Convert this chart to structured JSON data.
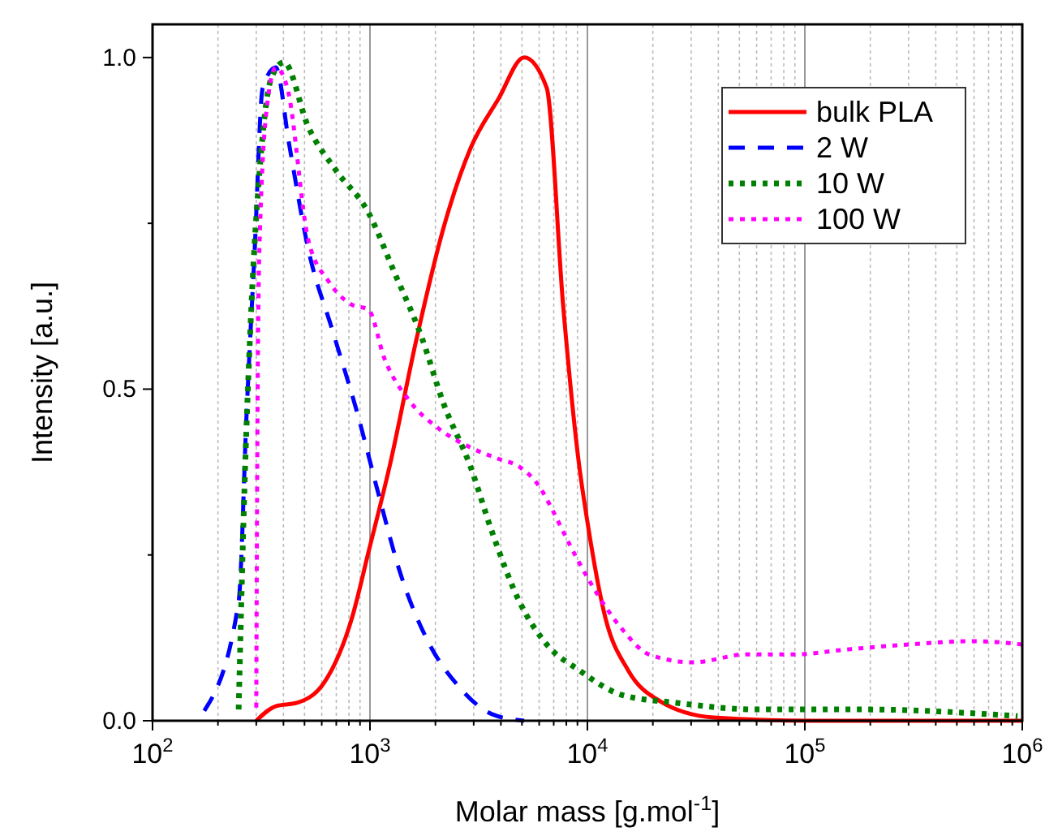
{
  "chart_data": {
    "type": "line",
    "xlabel": "Molar mass [g.mol$^{-1}$]",
    "ylabel": "Intensity [a.u.]",
    "log": "x",
    "grid": "x",
    "legend": "top right",
    "xlim": [
      100,
      1000000
    ],
    "ylim": [
      0,
      1.05
    ],
    "xticks": [
      {
        "value": 100,
        "label": "10$^{2}$"
      },
      {
        "value": 200,
        "label": null
      },
      {
        "value": 300,
        "label": null
      },
      {
        "value": 400,
        "label": null
      },
      {
        "value": 500,
        "label": null
      },
      {
        "value": 600,
        "label": null
      },
      {
        "value": 700,
        "label": null
      },
      {
        "value": 800,
        "label": null
      },
      {
        "value": 900,
        "label": null
      },
      {
        "value": 1000,
        "label": "10$^{3}$"
      },
      {
        "value": 2000,
        "label": null
      },
      {
        "value": 3000,
        "label": null
      },
      {
        "value": 4000,
        "label": null
      },
      {
        "value": 5000,
        "label": null
      },
      {
        "value": 6000,
        "label": null
      },
      {
        "value": 7000,
        "label": null
      },
      {
        "value": 8000,
        "label": null
      },
      {
        "value": 9000,
        "label": null
      },
      {
        "value": 10000,
        "label": "10$^{4}$"
      },
      {
        "value": 20000,
        "label": null
      },
      {
        "value": 30000,
        "label": null
      },
      {
        "value": 40000,
        "label": null
      },
      {
        "value": 50000,
        "label": null
      },
      {
        "value": 60000,
        "label": null
      },
      {
        "value": 70000,
        "label": null
      },
      {
        "value": 80000,
        "label": null
      },
      {
        "value": 90000,
        "label": null
      },
      {
        "value": 100000,
        "label": "10$^{5}$"
      },
      {
        "value": 200000,
        "label": null
      },
      {
        "value": 300000,
        "label": null
      },
      {
        "value": 400000,
        "label": null
      },
      {
        "value": 500000,
        "label": null
      },
      {
        "value": 600000,
        "label": null
      },
      {
        "value": 700000,
        "label": null
      },
      {
        "value": 800000,
        "label": null
      },
      {
        "value": 900000,
        "label": null
      },
      {
        "value": 1000000,
        "label": "10$^{6}$"
      }
    ],
    "yticks": [
      {
        "value": 0,
        "label": "0.0"
      },
      {
        "value": 0.25,
        "label": null
      },
      {
        "value": 0.5,
        "label": "0.5"
      },
      {
        "value": 0.75,
        "label": null
      },
      {
        "value": 1,
        "label": "1.0"
      }
    ],
    "series": [
      {
        "name": "bulk PLA",
        "color": "#ff0000",
        "line_style": "solid",
        "x": [
          300,
          369,
          461,
          617,
          828,
          984,
          1230,
          1643,
          2170,
          2900,
          3890,
          5120,
          6500,
          7730,
          9180,
          10000,
          12080,
          15400,
          21700,
          38000,
          107000,
          1000000
        ],
        "values": [
          0,
          0.022,
          0.027,
          0.058,
          0.156,
          0.254,
          0.383,
          0.578,
          0.741,
          0.863,
          0.937,
          1.0,
          0.954,
          0.627,
          0.383,
          0.3,
          0.156,
          0.076,
          0.029,
          0.005,
          0,
          0
        ]
      },
      {
        "name": "2 W",
        "color": "#0000ff",
        "line_style": "dashed",
        "x": [
          173,
          249,
          271,
          295,
          321,
          369,
          424,
          521,
          673,
          871,
          1090,
          1380,
          1820,
          2570,
          3640,
          5120
        ],
        "values": [
          0.015,
          0.18,
          0.466,
          0.71,
          0.954,
          0.985,
          0.871,
          0.71,
          0.588,
          0.466,
          0.344,
          0.222,
          0.124,
          0.051,
          0.01,
          0
        ]
      },
      {
        "name": "10 W",
        "color": "#008000",
        "line_style": "dotted",
        "x": [
          249,
          262,
          285,
          311,
          351,
          402,
          521,
          697,
          984,
          1295,
          1730,
          2170,
          2900,
          3640,
          4860,
          6500,
          9180,
          14370,
          25700,
          60300,
          189000,
          951000
        ],
        "values": [
          0.017,
          0.3,
          0.627,
          0.83,
          0.968,
          0.993,
          0.895,
          0.83,
          0.766,
          0.676,
          0.578,
          0.48,
          0.383,
          0.285,
          0.18,
          0.115,
          0.076,
          0.039,
          0.027,
          0.017,
          0.017,
          0.007
        ]
      },
      {
        "name": "100 W",
        "color": "#ff00ff",
        "line_style": "dotted",
        "x": [
          300,
          303,
          310,
          339,
          369,
          417,
          521,
          650,
          828,
          984,
          1166,
          1540,
          2060,
          2900,
          3890,
          4860,
          6070,
          6850,
          8130,
          10160,
          14370,
          19200,
          30600,
          53800,
          90200,
          151000,
          300000,
          597000,
          1000000
        ],
        "values": [
          0.02,
          0.383,
          0.71,
          0.937,
          0.985,
          0.954,
          0.724,
          0.661,
          0.627,
          0.62,
          0.546,
          0.48,
          0.441,
          0.412,
          0.395,
          0.383,
          0.351,
          0.32,
          0.271,
          0.212,
          0.139,
          0.1,
          0.088,
          0.1,
          0.1,
          0.107,
          0.115,
          0.12,
          0.115
        ]
      }
    ]
  }
}
